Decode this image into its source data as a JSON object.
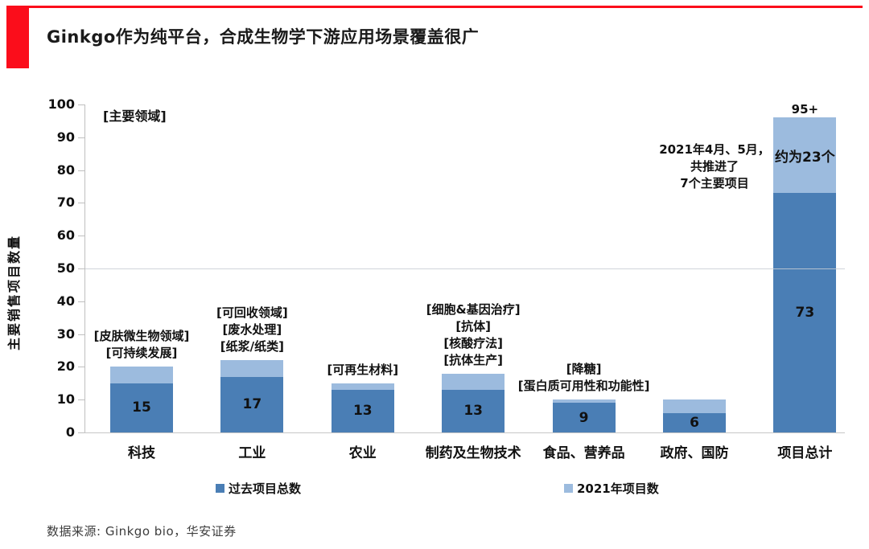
{
  "header": {
    "title": "Ginkgo作为纯平台，合成生物学下游应用场景覆盖很广"
  },
  "footer": {
    "source": "数据来源: Ginkgo bio，华安证券"
  },
  "colors": {
    "accent_red": "#fb0d1b",
    "bar_dark": "#4a7eb5",
    "bar_light": "#9cbbde",
    "axis_gray": "#bfbfbf"
  },
  "chart_data": {
    "type": "bar",
    "stacked": true,
    "ylabel": "主要销售项目数量",
    "ylim": [
      0,
      100
    ],
    "yticks": [
      0,
      10,
      20,
      30,
      40,
      50,
      60,
      70,
      80,
      90,
      100
    ],
    "grid_value": 50,
    "legend_position": "bottom",
    "categories": [
      "科技",
      "工业",
      "农业",
      "制药及生物技术",
      "食品、营养品",
      "政府、国防",
      "项目总计"
    ],
    "series": [
      {
        "name": "过去项目总数",
        "color": "#4a7eb5",
        "values": [
          15,
          17,
          13,
          13,
          9,
          6,
          73
        ]
      },
      {
        "name": "2021年项目数",
        "color": "#9cbbde",
        "values": [
          5,
          5,
          2,
          5,
          1,
          4,
          23
        ]
      }
    ],
    "totals": [
      20,
      22,
      15,
      18,
      10,
      10,
      96
    ],
    "dark_segment_labels": [
      "15",
      "17",
      "13",
      "13",
      "9",
      "6",
      "73"
    ],
    "annotations": {
      "corner_note": "[主要领域]",
      "per_category": [
        [
          "[皮肤微生物领域]",
          "[可持续发展]"
        ],
        [
          "[可回收领域]",
          "[废水处理]",
          "[纸浆/纸类]"
        ],
        [
          "[可再生材料]"
        ],
        [
          "[细胞&基因治疗]",
          "[抗体]",
          "[核酸疗法]",
          "[抗体生产]"
        ],
        [
          "[降糖]",
          "[蛋白质可用性和功能性]"
        ],
        [],
        []
      ],
      "total_top_label": "95+",
      "total_light_label": "约为23个",
      "side_note_lines": [
        "2021年4月、5月，",
        "共推进了",
        "7个主要项目"
      ]
    }
  }
}
